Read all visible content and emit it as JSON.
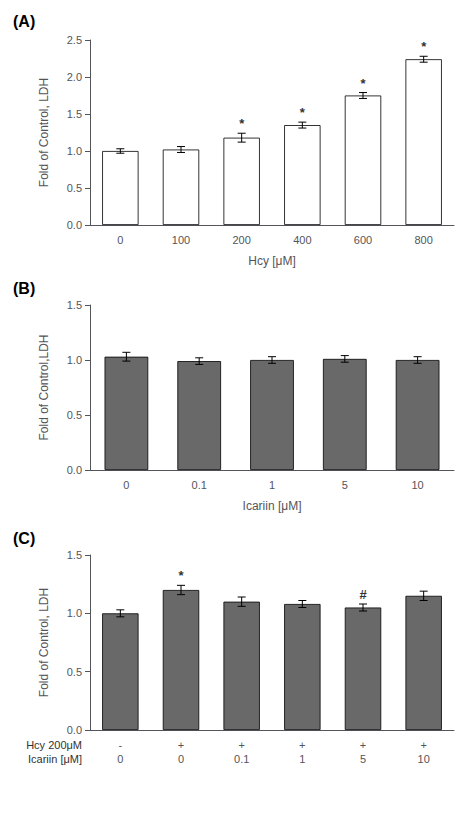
{
  "chart_data": [
    {
      "type": "bar",
      "title": "(A)",
      "categories": [
        "0",
        "100",
        "200",
        "400",
        "600",
        "800"
      ],
      "values": [
        1.0,
        1.02,
        1.18,
        1.35,
        1.75,
        2.24
      ],
      "errors": [
        0.03,
        0.04,
        0.06,
        0.04,
        0.04,
        0.04
      ],
      "annotations": [
        null,
        null,
        "*",
        "*",
        "*",
        "*"
      ],
      "xlabel": "Hcy [μM]",
      "ylabel": "Fold of Control, LDH",
      "ylim": [
        0.0,
        2.5
      ],
      "yticks": [
        {
          "value": 0.0,
          "label": "0.0"
        },
        {
          "value": 0.5,
          "label": "0.5"
        },
        {
          "value": 1.0,
          "label": "1.0"
        },
        {
          "value": 1.5,
          "label": "1.5"
        },
        {
          "value": 2.0,
          "label": "2.0"
        },
        {
          "value": 2.5,
          "label": "2.5"
        }
      ],
      "colors": [
        "white",
        "white",
        "white",
        "white",
        "white",
        "white"
      ],
      "grid": false
    },
    {
      "type": "bar",
      "title": "(B)",
      "categories": [
        "0",
        "0.1",
        "1",
        "5",
        "10"
      ],
      "values": [
        1.03,
        0.99,
        1.0,
        1.01,
        1.0
      ],
      "errors": [
        0.04,
        0.03,
        0.03,
        0.03,
        0.03
      ],
      "xlabel": "Icariin [μM]",
      "ylabel": "Fold of Control,LDH",
      "ylim": [
        0.0,
        1.5
      ],
      "yticks": [
        {
          "value": 0.0,
          "label": "0.0"
        },
        {
          "value": 0.5,
          "label": "0.5"
        },
        {
          "value": 1.0,
          "label": "1.0"
        },
        {
          "value": 1.5,
          "label": "1.5"
        }
      ],
      "color": "#696969",
      "grid": false
    },
    {
      "type": "bar",
      "title": "(C)",
      "categories": [
        [
          "-",
          "0"
        ],
        [
          "+",
          "0"
        ],
        [
          "+",
          "0.1"
        ],
        [
          "+",
          "1"
        ],
        [
          "+",
          "5"
        ],
        [
          "+",
          "10"
        ]
      ],
      "values": [
        1.0,
        1.2,
        1.1,
        1.08,
        1.05,
        1.15
      ],
      "errors": [
        0.03,
        0.04,
        0.04,
        0.03,
        0.03,
        0.04
      ],
      "annotations": [
        null,
        "*",
        null,
        null,
        "#",
        null
      ],
      "xlabel": [
        "Hcy 200μM",
        "Icariin [μM]"
      ],
      "ylabel": "Fold of Control, LDH",
      "ylim": [
        0.0,
        1.5
      ],
      "yticks": [
        {
          "value": 0.0,
          "label": "0.0"
        },
        {
          "value": 0.5,
          "label": "0.5"
        },
        {
          "value": 1.0,
          "label": "1.0"
        },
        {
          "value": 1.5,
          "label": "1.5"
        }
      ],
      "color": "#696969",
      "grid": false
    }
  ]
}
